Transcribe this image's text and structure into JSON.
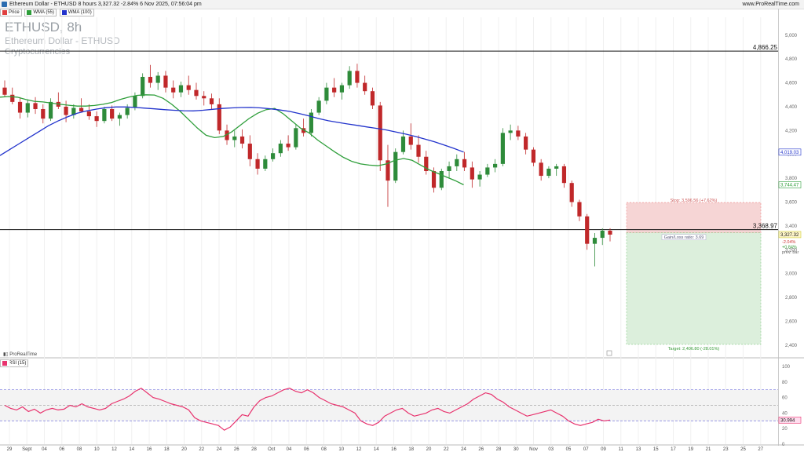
{
  "topbar": {
    "title": "Ethereum Dollar - ETHUSD 8 hours 3,327.32 -2.84% 6 Nov 2025, 07:56:04 pm",
    "source": "www.ProRealTime.com"
  },
  "legend": {
    "items": [
      {
        "label": "Price",
        "color": "#e04040"
      },
      {
        "label": "WMA (55)",
        "color": "#2e9e3a"
      },
      {
        "label": "WMA (100)",
        "color": "#2233cc"
      }
    ]
  },
  "header": {
    "symbol": "ETHUSD, 8h",
    "name": "Ethereum Dollar - ETHUSD",
    "category": "Cryptocurrencies"
  },
  "watermark": "ProRealTime",
  "rsi_label": "RSI (15)",
  "colors": {
    "up": "#2e8b3a",
    "down": "#c0282a",
    "wma_short": "#2e9e3a",
    "wma_long": "#2233cc",
    "rsi": "#e8336e"
  },
  "chart_data": [
    {
      "type": "candlestick",
      "title": "ETHUSD, 8h",
      "ylim": [
        2300,
        5150
      ],
      "y_ticks": [
        5000,
        4800,
        4600,
        4400,
        4200,
        4000,
        3800,
        3600,
        3400,
        3200,
        3000,
        2800,
        2600,
        2400
      ],
      "y_tick_labels": [
        "5,000",
        "4,800",
        "4,600",
        "4,400",
        "4,200",
        "4,000",
        "3,800",
        "3,600",
        "3,400",
        "3,200",
        "3,000",
        "2,800",
        "2,600",
        "2,400"
      ],
      "x_tick_labels": [
        "29",
        "Sept",
        "04",
        "06",
        "08",
        "10",
        "12",
        "14",
        "16",
        "18",
        "20",
        "22",
        "24",
        "26",
        "28",
        "Oct",
        "04",
        "06",
        "08",
        "10",
        "12",
        "14",
        "16",
        "18",
        "20",
        "22",
        "24",
        "26",
        "28",
        "30",
        "Nov",
        "03",
        "05",
        "07",
        "09",
        "11",
        "13",
        "15",
        "17",
        "19",
        "21",
        "23",
        "25",
        "27"
      ],
      "horizontal_lines": [
        {
          "value": 4866.25,
          "label": "4,866.25"
        },
        {
          "value": 3368.97,
          "label": "3,368.97"
        }
      ],
      "price_labels": [
        {
          "value": 4019.03,
          "label": "4,019.03",
          "series": "WMA (100)"
        },
        {
          "value": 3744.47,
          "label": "3,744.47",
          "series": "WMA (55)"
        },
        {
          "value": 3327.32,
          "label": "3,327.32",
          "series": "Price"
        }
      ],
      "last_change": [
        "-2.04%",
        "+0.84%",
        "prev. bar"
      ],
      "trade_box": {
        "stop": 3596.56,
        "stop_label": "Stop: 3,596.56 (+7.62%)",
        "entry": 3341.9,
        "gain_loss_label": "Gain/Loss ratio: 3.69",
        "target": 2406.8,
        "target_label": "Target: 2,406.80 (-28.01%)"
      },
      "series": [
        {
          "name": "WMA (55)",
          "x_range": [
            0,
            0.76
          ],
          "values": [
            4480,
            4485,
            4480,
            4460,
            4445,
            4440,
            4430,
            4420,
            4412,
            4405,
            4405,
            4410,
            4420,
            4435,
            4460,
            4480,
            4495,
            4500,
            4498,
            4470,
            4420,
            4360,
            4290,
            4220,
            4160,
            4140,
            4150,
            4190,
            4245,
            4300,
            4345,
            4375,
            4385,
            4340,
            4280,
            4220,
            4180,
            4120,
            4070,
            4020,
            3975,
            3940,
            3920,
            3910,
            3905,
            3920,
            3950,
            3965,
            3950,
            3910,
            3870,
            3840,
            3810,
            3780,
            3745
          ]
        },
        {
          "name": "WMA (100)",
          "x_range": [
            0,
            0.76
          ],
          "values": [
            3990,
            4040,
            4090,
            4140,
            4190,
            4240,
            4280,
            4315,
            4345,
            4365,
            4380,
            4392,
            4398,
            4398,
            4394,
            4388,
            4382,
            4375,
            4370,
            4366,
            4365,
            4370,
            4378,
            4385,
            4390,
            4393,
            4394,
            4390,
            4382,
            4372,
            4360,
            4342,
            4322,
            4300,
            4282,
            4268,
            4255,
            4243,
            4230,
            4218,
            4205,
            4188,
            4170,
            4150,
            4128,
            4105,
            4078,
            4050,
            4019
          ]
        }
      ]
    },
    {
      "type": "line",
      "title": "RSI (15)",
      "ylim": [
        0,
        105
      ],
      "y_ticks": [
        100,
        80,
        60,
        40,
        20,
        0
      ],
      "y_tick_labels": [
        "100",
        "80",
        "60",
        "40",
        "20",
        "0"
      ],
      "reference_lines": [
        70,
        50,
        30
      ],
      "last_value": "30.994",
      "series": [
        {
          "name": "RSI (15)",
          "x_range": [
            0,
            0.76
          ],
          "values": [
            50,
            46,
            44,
            48,
            42,
            45,
            40,
            44,
            46,
            44,
            45,
            50,
            48,
            52,
            48,
            46,
            44,
            46,
            52,
            55,
            58,
            62,
            68,
            72,
            66,
            60,
            58,
            55,
            52,
            50,
            48,
            44,
            34,
            30,
            28,
            26,
            24,
            18,
            22,
            30,
            38,
            36,
            48,
            56,
            60,
            62,
            66,
            70,
            72,
            68,
            66,
            70,
            66,
            60,
            56,
            52,
            50,
            48,
            44,
            40,
            30,
            26,
            24,
            28,
            36,
            40,
            44,
            46,
            40,
            36,
            38,
            40,
            44,
            46,
            42,
            40,
            44,
            48,
            52,
            58,
            62,
            66,
            64,
            58,
            54,
            48,
            44,
            40,
            36,
            38,
            40,
            42,
            44,
            40,
            36,
            30,
            26,
            24,
            26,
            28,
            32,
            30,
            31
          ]
        }
      ]
    }
  ],
  "candles": [
    [
      4560,
      4620,
      4480,
      4500
    ],
    [
      4500,
      4560,
      4420,
      4440
    ],
    [
      4440,
      4480,
      4300,
      4350
    ],
    [
      4350,
      4460,
      4310,
      4430
    ],
    [
      4430,
      4480,
      4340,
      4380
    ],
    [
      4380,
      4420,
      4260,
      4300
    ],
    [
      4300,
      4470,
      4280,
      4440
    ],
    [
      4440,
      4520,
      4380,
      4400
    ],
    [
      4400,
      4450,
      4270,
      4330
    ],
    [
      4330,
      4420,
      4300,
      4390
    ],
    [
      4390,
      4470,
      4350,
      4360
    ],
    [
      4360,
      4420,
      4290,
      4320
    ],
    [
      4320,
      4360,
      4230,
      4280
    ],
    [
      4280,
      4400,
      4260,
      4380
    ],
    [
      4380,
      4410,
      4280,
      4300
    ],
    [
      4300,
      4350,
      4240,
      4330
    ],
    [
      4330,
      4420,
      4300,
      4390
    ],
    [
      4390,
      4520,
      4370,
      4490
    ],
    [
      4490,
      4680,
      4470,
      4650
    ],
    [
      4650,
      4750,
      4560,
      4600
    ],
    [
      4600,
      4690,
      4540,
      4660
    ],
    [
      4660,
      4700,
      4520,
      4560
    ],
    [
      4560,
      4620,
      4470,
      4520
    ],
    [
      4520,
      4610,
      4480,
      4580
    ],
    [
      4580,
      4660,
      4500,
      4540
    ],
    [
      4540,
      4600,
      4460,
      4490
    ],
    [
      4490,
      4530,
      4410,
      4470
    ],
    [
      4470,
      4510,
      4380,
      4420
    ],
    [
      4420,
      4470,
      4170,
      4200
    ],
    [
      4200,
      4250,
      4080,
      4120
    ],
    [
      4120,
      4200,
      4060,
      4150
    ],
    [
      4150,
      4210,
      4050,
      4090
    ],
    [
      4090,
      4160,
      3900,
      3960
    ],
    [
      3960,
      4010,
      3830,
      3880
    ],
    [
      3880,
      3990,
      3860,
      3960
    ],
    [
      3960,
      4050,
      3940,
      4010
    ],
    [
      4010,
      4120,
      3980,
      4090
    ],
    [
      4090,
      4160,
      4030,
      4060
    ],
    [
      4060,
      4250,
      4040,
      4220
    ],
    [
      4220,
      4300,
      4150,
      4180
    ],
    [
      4180,
      4380,
      4150,
      4350
    ],
    [
      4350,
      4480,
      4330,
      4450
    ],
    [
      4450,
      4600,
      4420,
      4560
    ],
    [
      4560,
      4640,
      4480,
      4520
    ],
    [
      4520,
      4600,
      4460,
      4580
    ],
    [
      4580,
      4740,
      4550,
      4700
    ],
    [
      4700,
      4760,
      4560,
      4600
    ],
    [
      4600,
      4660,
      4500,
      4530
    ],
    [
      4530,
      4560,
      4380,
      4410
    ],
    [
      4410,
      4440,
      3860,
      3950
    ],
    [
      3950,
      4080,
      3560,
      3780
    ],
    [
      3780,
      4050,
      3760,
      4020
    ],
    [
      4020,
      4200,
      4000,
      4150
    ],
    [
      4150,
      4260,
      4040,
      4080
    ],
    [
      4080,
      4160,
      3930,
      3980
    ],
    [
      3980,
      4030,
      3830,
      3860
    ],
    [
      3860,
      3890,
      3680,
      3720
    ],
    [
      3720,
      3880,
      3700,
      3860
    ],
    [
      3860,
      3940,
      3800,
      3900
    ],
    [
      3900,
      4000,
      3860,
      3960
    ],
    [
      3960,
      4020,
      3860,
      3890
    ],
    [
      3890,
      3940,
      3720,
      3790
    ],
    [
      3790,
      3860,
      3730,
      3830
    ],
    [
      3830,
      3920,
      3810,
      3890
    ],
    [
      3890,
      3960,
      3850,
      3920
    ],
    [
      3920,
      4220,
      3900,
      4180
    ],
    [
      4180,
      4250,
      4120,
      4200
    ],
    [
      4200,
      4240,
      4120,
      4150
    ],
    [
      4150,
      4180,
      4000,
      4040
    ],
    [
      4040,
      4060,
      3900,
      3930
    ],
    [
      3930,
      3960,
      3780,
      3820
    ],
    [
      3820,
      3900,
      3800,
      3880
    ],
    [
      3880,
      3920,
      3820,
      3900
    ],
    [
      3900,
      3920,
      3720,
      3760
    ],
    [
      3760,
      3780,
      3560,
      3600
    ],
    [
      3600,
      3620,
      3440,
      3480
    ],
    [
      3480,
      3500,
      3200,
      3250
    ],
    [
      3250,
      3340,
      3060,
      3300
    ],
    [
      3300,
      3380,
      3240,
      3360
    ],
    [
      3360,
      3380,
      3270,
      3327
    ]
  ]
}
